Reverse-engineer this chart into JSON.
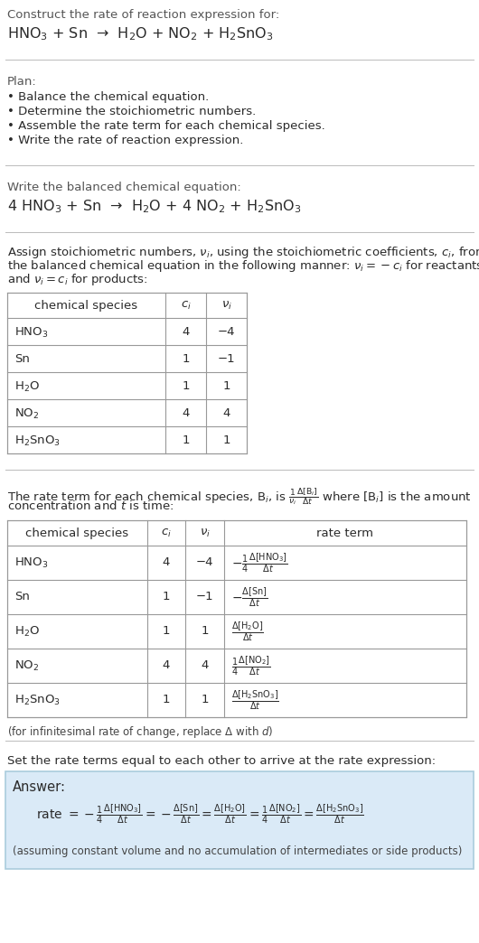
{
  "title_line1": "Construct the rate of reaction expression for:",
  "title_line2": "HNO$_3$ + Sn  →  H$_2$O + NO$_2$ + H$_2$SnO$_3$",
  "plan_header": "Plan:",
  "plan_items": [
    "• Balance the chemical equation.",
    "• Determine the stoichiometric numbers.",
    "• Assemble the rate term for each chemical species.",
    "• Write the rate of reaction expression."
  ],
  "balanced_header": "Write the balanced chemical equation:",
  "balanced_eq": "4 HNO$_3$ + Sn  →  H$_2$O + 4 NO$_2$ + H$_2$SnO$_3$",
  "stoich_intro_lines": [
    "Assign stoichiometric numbers, $\\nu_i$, using the stoichiometric coefficients, $c_i$, from",
    "the balanced chemical equation in the following manner: $\\nu_i = -c_i$ for reactants",
    "and $\\nu_i = c_i$ for products:"
  ],
  "table1_headers": [
    "chemical species",
    "$c_i$",
    "$\\nu_i$"
  ],
  "table1_rows": [
    [
      "HNO$_3$",
      "4",
      "−4"
    ],
    [
      "Sn",
      "1",
      "−1"
    ],
    [
      "H$_2$O",
      "1",
      "1"
    ],
    [
      "NO$_2$",
      "4",
      "4"
    ],
    [
      "H$_2$SnO$_3$",
      "1",
      "1"
    ]
  ],
  "rate_intro_lines": [
    "The rate term for each chemical species, B$_i$, is $\\frac{1}{\\nu_i}\\frac{\\Delta[\\mathrm{B}_i]}{\\Delta t}$ where [B$_i$] is the amount",
    "concentration and $t$ is time:"
  ],
  "table2_headers": [
    "chemical species",
    "$c_i$",
    "$\\nu_i$",
    "rate term"
  ],
  "table2_rows": [
    [
      "HNO$_3$",
      "4",
      "−4",
      "$-\\frac{1}{4}\\frac{\\Delta[\\mathrm{HNO_3}]}{\\Delta t}$"
    ],
    [
      "Sn",
      "1",
      "−1",
      "$-\\frac{\\Delta[\\mathrm{Sn}]}{\\Delta t}$"
    ],
    [
      "H$_2$O",
      "1",
      "1",
      "$\\frac{\\Delta[\\mathrm{H_2O}]}{\\Delta t}$"
    ],
    [
      "NO$_2$",
      "4",
      "4",
      "$\\frac{1}{4}\\frac{\\Delta[\\mathrm{NO_2}]}{\\Delta t}$"
    ],
    [
      "H$_2$SnO$_3$",
      "1",
      "1",
      "$\\frac{\\Delta[\\mathrm{H_2SnO_3}]}{\\Delta t}$"
    ]
  ],
  "infinitesimal_note": "(for infinitesimal rate of change, replace Δ with $d$)",
  "set_equal_text": "Set the rate terms equal to each other to arrive at the rate expression:",
  "answer_label": "Answer:",
  "answer_box_color": "#daeaf7",
  "answer_box_border": "#aaccdd",
  "answer_rate_expr": "rate $= -\\frac{1}{4}\\frac{\\Delta[\\mathrm{HNO_3}]}{\\Delta t} = -\\frac{\\Delta[\\mathrm{Sn}]}{\\Delta t} = \\frac{\\Delta[\\mathrm{H_2O}]}{\\Delta t} = \\frac{1}{4}\\frac{\\Delta[\\mathrm{NO_2}]}{\\Delta t} = \\frac{\\Delta[\\mathrm{H_2SnO_3}]}{\\Delta t}$",
  "answer_note": "(assuming constant volume and no accumulation of intermediates or side products)",
  "bg_color": "#ffffff",
  "text_color": "#2a2a2a",
  "table_line_color": "#999999",
  "separator_color": "#bbbbbb",
  "font_size": 9.5,
  "small_font": 8.5,
  "eq_font_size": 11.5,
  "header_font": 9.5
}
